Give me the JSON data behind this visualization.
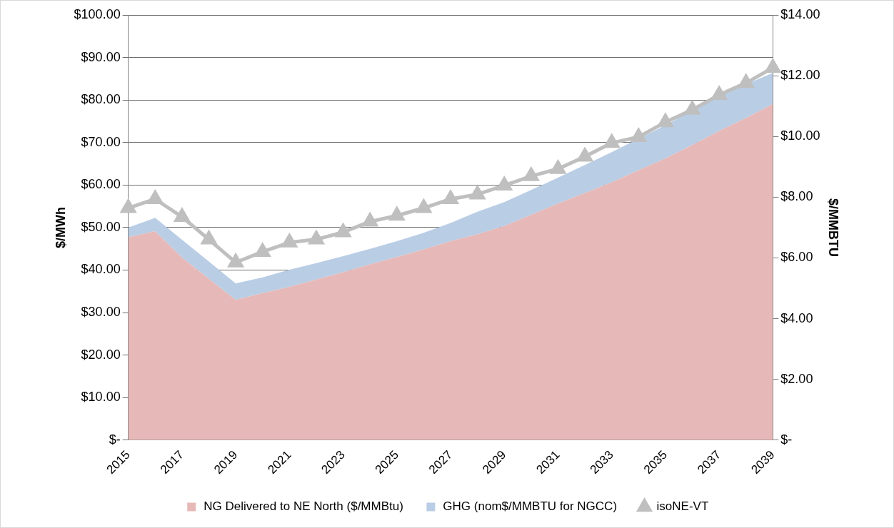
{
  "chart_data": {
    "type": "area",
    "ylabel": "$/MWh",
    "y2label": "$/MMBTU",
    "categories": [
      "2015",
      null,
      "2017",
      null,
      "2019",
      null,
      "2021",
      null,
      "2023",
      null,
      "2025",
      null,
      "2027",
      null,
      "2029",
      null,
      "2031",
      null,
      "2033",
      null,
      "2035",
      null,
      "2037",
      null,
      "2039"
    ],
    "series": [
      {
        "name": "NG Delivered to NE North ($/MMBtu)",
        "axis": "y2",
        "color": "#e6b9b8",
        "values": [
          6.68,
          6.88,
          6.01,
          5.31,
          4.62,
          4.84,
          5.05,
          5.29,
          5.53,
          5.79,
          6.03,
          6.28,
          6.55,
          6.78,
          7.05,
          7.42,
          7.79,
          8.14,
          8.49,
          8.89,
          9.28,
          9.72,
          10.18,
          10.61,
          11.07
        ]
      },
      {
        "name": "GHG (nom$/MMBTU for NGCC)",
        "axis": "y2",
        "color": "#b9cde5",
        "values": [
          0.32,
          0.44,
          0.59,
          0.57,
          0.54,
          0.52,
          0.56,
          0.54,
          0.53,
          0.51,
          0.52,
          0.55,
          0.6,
          0.74,
          0.79,
          0.82,
          0.85,
          0.92,
          0.99,
          1.04,
          1.09,
          1.13,
          1.14,
          1.11,
          1.02
        ]
      },
      {
        "name": "isoNE-VT",
        "type": "line",
        "axis": "y",
        "marker": "triangle",
        "color": "#bfbfbf",
        "values": [
          54.6,
          56.7,
          52.5,
          47.2,
          41.8,
          44.3,
          46.5,
          47.2,
          48.9,
          51.4,
          52.8,
          54.6,
          56.7,
          57.8,
          59.9,
          62.1,
          63.8,
          66.7,
          69.9,
          71.3,
          74.8,
          77.7,
          81.2,
          84.0,
          87.6
        ]
      }
    ],
    "stacked": true,
    "ylim": [
      0,
      100
    ],
    "yticks": [
      {
        "value": 0,
        "label": "$-"
      },
      {
        "value": 10,
        "label": "$10.00"
      },
      {
        "value": 20,
        "label": "$20.00"
      },
      {
        "value": 30,
        "label": "$30.00"
      },
      {
        "value": 40,
        "label": "$40.00"
      },
      {
        "value": 50,
        "label": "$50.00"
      },
      {
        "value": 60,
        "label": "$60.00"
      },
      {
        "value": 70,
        "label": "$70.00"
      },
      {
        "value": 80,
        "label": "$80.00"
      },
      {
        "value": 90,
        "label": "$90.00"
      },
      {
        "value": 100,
        "label": "$100.00"
      }
    ],
    "y2lim": [
      0,
      14
    ],
    "y2ticks": [
      {
        "value": 0,
        "label": "$-"
      },
      {
        "value": 2,
        "label": "$2.00"
      },
      {
        "value": 4,
        "label": "$4.00"
      },
      {
        "value": 6,
        "label": "$6.00"
      },
      {
        "value": 8,
        "label": "$8.00"
      },
      {
        "value": 10,
        "label": "$10.00"
      },
      {
        "value": 12,
        "label": "$12.00"
      },
      {
        "value": 14,
        "label": "$14.00"
      }
    ],
    "grid": "y",
    "legend": "bottom"
  }
}
